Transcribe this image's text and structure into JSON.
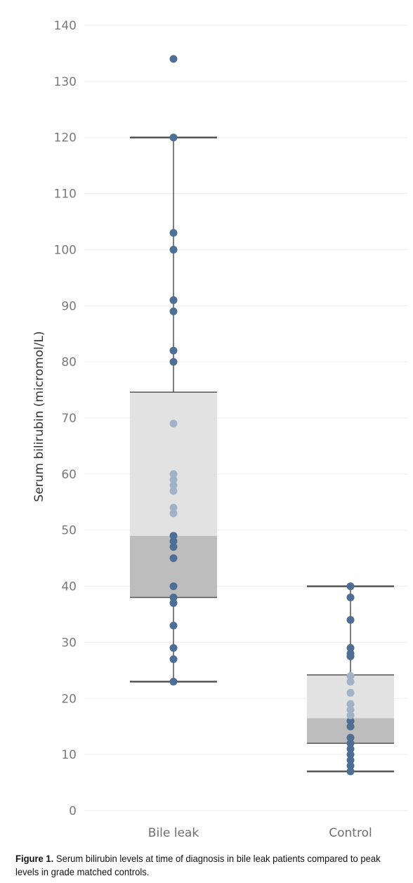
{
  "chart_data": {
    "type": "box",
    "ylabel": "Serum bilirubin (micromol/L)",
    "ylim": [
      0,
      140
    ],
    "yticks": [
      0,
      10,
      20,
      30,
      40,
      50,
      60,
      70,
      80,
      90,
      100,
      110,
      120,
      130,
      140
    ],
    "grid": true,
    "categories": [
      "Bile leak",
      "Control"
    ],
    "boxes": [
      {
        "category": "Bile leak",
        "whisker_low": 23,
        "q1": 38,
        "median": 49,
        "q3": 74.6,
        "whisker_high": 120,
        "points": [
          23,
          27,
          29,
          33,
          37,
          38,
          40,
          45,
          47,
          48,
          49,
          53,
          54,
          57,
          58,
          59,
          60,
          69,
          80,
          82,
          89,
          91,
          100,
          103,
          120,
          134
        ]
      },
      {
        "category": "Control",
        "whisker_low": 7,
        "q1": 12,
        "median": 16.5,
        "q3": 24.2,
        "whisker_high": 40,
        "points": [
          7,
          8,
          9,
          10,
          11,
          12,
          13,
          15,
          16,
          17,
          18,
          19,
          21,
          23,
          24,
          27.5,
          28,
          29,
          34,
          38,
          40
        ]
      }
    ],
    "colors": {
      "point": "#4e6e93",
      "point_in_upper_box": "#a2b2c6",
      "box_lower": "#bdbdbd",
      "box_upper": "#e2e2e2",
      "line": "#555555",
      "grid": "#eeeeee"
    }
  },
  "caption": {
    "label": "Figure 1.",
    "text": " Serum bilirubin levels at time of diagnosis in bile leak patients compared to peak levels in grade matched controls."
  }
}
